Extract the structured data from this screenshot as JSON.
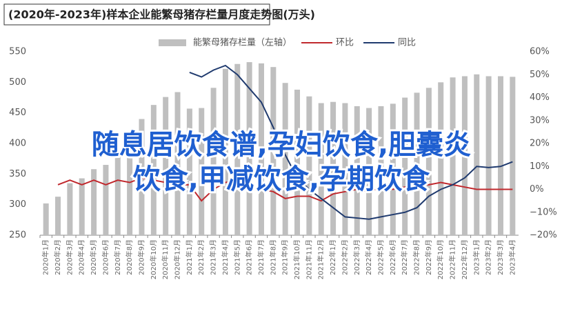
{
  "chart_data": {
    "type": "bar",
    "title": "(2020年-2023年)样本企业能繁母猪存栏量月度走势图(万头)",
    "categories": [
      "2020年1月",
      "2020年2月",
      "2020年3月",
      "2020年4月",
      "2020年5月",
      "2020年6月",
      "2020年7月",
      "2020年8月",
      "2020年9月",
      "2020年10月",
      "2020年11月",
      "2020年12月",
      "2021年1月",
      "2021年2月",
      "2021年3月",
      "2021年4月",
      "2021年5月",
      "2021年6月",
      "2021年7月",
      "2021年8月",
      "2021年9月",
      "2021年10月",
      "2021年11月",
      "2021年12月",
      "2022年1月",
      "2022年2月",
      "2022年3月",
      "2022年4月",
      "2022年5月",
      "2022年6月",
      "2022年7月",
      "2022年8月",
      "2022年9月",
      "2022年10月",
      "2022年11月",
      "2022年12月",
      "2023年1月",
      "2023年2月",
      "2023年3月",
      "2023年4月"
    ],
    "series": [
      {
        "name": "能繁母猪存栏量（左轴）",
        "type": "bar",
        "color": "#bfbfbf",
        "values": [
          302,
          313,
          335,
          343,
          358,
          365,
          385,
          405,
          440,
          463,
          476,
          484,
          457,
          458,
          491,
          522,
          530,
          533,
          531,
          525,
          499,
          488,
          477,
          466,
          468,
          466,
          461,
          458,
          461,
          465,
          475,
          483,
          491,
          500,
          508,
          510,
          513,
          510,
          510,
          509
        ]
      },
      {
        "name": "环比",
        "type": "line",
        "axis": "y2",
        "color": "#c0282d",
        "values": [
          null,
          2,
          4,
          2,
          4,
          2,
          4,
          3,
          5,
          4,
          3,
          2,
          2,
          -5,
          0,
          3,
          4,
          1,
          0,
          -1,
          -4,
          -3,
          -3,
          -5,
          -2,
          -1,
          0,
          -1,
          1,
          0,
          1,
          2,
          2,
          3,
          2,
          1,
          0,
          0,
          0,
          0
        ]
      },
      {
        "name": "同比",
        "type": "line",
        "axis": "y2",
        "color": "#1f3a6e",
        "values": [
          null,
          null,
          null,
          null,
          null,
          null,
          null,
          null,
          null,
          null,
          null,
          null,
          51,
          49,
          52,
          54,
          50,
          44,
          38,
          27,
          15,
          5,
          0,
          -4,
          -8,
          -12,
          -12.5,
          -13,
          -12,
          -11,
          -10,
          -8,
          -3,
          0,
          2,
          5,
          10,
          9.5,
          10,
          12
        ]
      }
    ],
    "ylim": [
      250,
      550
    ],
    "yticks": [
      250,
      300,
      350,
      400,
      450,
      500,
      550
    ],
    "y2lim": [
      -20,
      60
    ],
    "y2ticks": [
      {
        "value": -20,
        "label": "−20%"
      },
      {
        "value": -10,
        "label": "−10%"
      },
      {
        "value": 0,
        "label": "0%"
      },
      {
        "value": 10,
        "label": "10%"
      },
      {
        "value": 20,
        "label": "20%"
      },
      {
        "value": 30,
        "label": "30%"
      },
      {
        "value": 40,
        "label": "40%"
      },
      {
        "value": 50,
        "label": "50%"
      },
      {
        "value": 60,
        "label": "60%"
      }
    ],
    "grid": false,
    "annotations": [
      "随息居饮食谱,孕妇饮食,胆囊炎",
      "饮食,甲减饮食,孕期饮食"
    ]
  }
}
